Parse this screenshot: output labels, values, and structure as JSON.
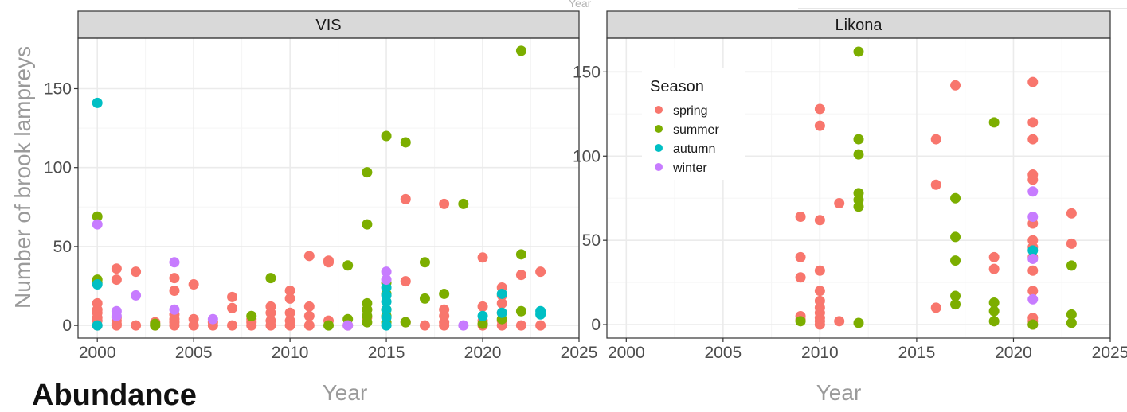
{
  "figure": {
    "ylabel": "Number of brook lampreys",
    "xlabel": "Year",
    "top_fragment": "Year",
    "heading": "Abundance"
  },
  "colors": {
    "spring": "#F8766D",
    "summer": "#7CAE00",
    "autumn": "#00BFC4",
    "winter": "#C77CFF",
    "strip": "#d9d9d9",
    "grid_major": "#ebebeb",
    "grid_minor": "#f5f5f5"
  },
  "legend": {
    "title": "Season",
    "placement": "top-left inside Likona panel",
    "items": [
      {
        "key": "spring",
        "label": "spring"
      },
      {
        "key": "summer",
        "label": "summer"
      },
      {
        "key": "autumn",
        "label": "autumn"
      },
      {
        "key": "winter",
        "label": "winter"
      }
    ]
  },
  "chart_data": [
    {
      "type": "scatter",
      "title": "VIS",
      "xlabel": "Year",
      "ylabel": "Number of brook lampreys",
      "xlim": [
        1999,
        2025
      ],
      "ylim": [
        -8,
        182
      ],
      "xticks": [
        2000,
        2005,
        2010,
        2015,
        2020,
        2025
      ],
      "yticks": [
        0,
        50,
        100,
        150
      ],
      "grid": true,
      "series": [
        {
          "name": "spring",
          "x": [
            2000,
            2000,
            2000,
            2000,
            2000,
            2000,
            2001,
            2001,
            2001,
            2001,
            2001,
            2001,
            2002,
            2002,
            2003,
            2003,
            2004,
            2004,
            2004,
            2004,
            2004,
            2004,
            2005,
            2005,
            2005,
            2006,
            2006,
            2007,
            2007,
            2007,
            2008,
            2008,
            2008,
            2009,
            2009,
            2009,
            2009,
            2010,
            2010,
            2010,
            2010,
            2010,
            2011,
            2011,
            2011,
            2011,
            2012,
            2012,
            2012,
            2013,
            2014,
            2014,
            2016,
            2016,
            2016,
            2017,
            2018,
            2018,
            2018,
            2018,
            2018,
            2020,
            2020,
            2020,
            2020,
            2021,
            2021,
            2021,
            2021,
            2021,
            2021,
            2022,
            2022,
            2023,
            2023
          ],
          "y": [
            14,
            10,
            8,
            5,
            3,
            0,
            36,
            29,
            5,
            3,
            1,
            0,
            34,
            0,
            2,
            0,
            30,
            22,
            7,
            4,
            2,
            0,
            26,
            4,
            0,
            2,
            0,
            18,
            11,
            0,
            4,
            2,
            0,
            12,
            8,
            3,
            0,
            22,
            17,
            8,
            3,
            0,
            44,
            12,
            6,
            0,
            40,
            3,
            41,
            0,
            10,
            5,
            80,
            28,
            2,
            0,
            77,
            10,
            6,
            2,
            0,
            43,
            12,
            3,
            0,
            24,
            19,
            14,
            8,
            3,
            0,
            32,
            0,
            34,
            0
          ]
        },
        {
          "name": "summer",
          "x": [
            2000,
            2000,
            2000,
            2003,
            2003,
            2008,
            2009,
            2012,
            2013,
            2013,
            2014,
            2014,
            2014,
            2014,
            2014,
            2014,
            2015,
            2015,
            2015,
            2015,
            2015,
            2015,
            2016,
            2016,
            2017,
            2017,
            2018,
            2019,
            2020,
            2021,
            2022,
            2022,
            2022
          ],
          "y": [
            69,
            29,
            27,
            1,
            0,
            6,
            30,
            0,
            38,
            4,
            97,
            64,
            14,
            10,
            6,
            2,
            120,
            27,
            20,
            10,
            6,
            2,
            116,
            2,
            40,
            17,
            20,
            77,
            1,
            4,
            174,
            45,
            9
          ]
        },
        {
          "name": "autumn",
          "x": [
            2000,
            2000,
            2000,
            2015,
            2015,
            2015,
            2015,
            2015,
            2015,
            2020,
            2021,
            2021,
            2023,
            2023
          ],
          "y": [
            141,
            26,
            0,
            24,
            19,
            15,
            10,
            5,
            0,
            6,
            20,
            8,
            9,
            7
          ]
        },
        {
          "name": "winter",
          "x": [
            2000,
            2001,
            2001,
            2002,
            2004,
            2004,
            2006,
            2013,
            2015,
            2015,
            2019
          ],
          "y": [
            64,
            9,
            6,
            19,
            40,
            10,
            4,
            0,
            34,
            29,
            0
          ]
        }
      ]
    },
    {
      "type": "scatter",
      "title": "Likona",
      "xlabel": "Year",
      "ylabel": "",
      "xlim": [
        1999,
        2025
      ],
      "ylim": [
        -8,
        170
      ],
      "xticks": [
        2000,
        2005,
        2010,
        2015,
        2020,
        2025
      ],
      "yticks": [
        0,
        50,
        100,
        150
      ],
      "grid": true,
      "series": [
        {
          "name": "spring",
          "x": [
            2009,
            2009,
            2009,
            2009,
            2009,
            2010,
            2010,
            2010,
            2010,
            2010,
            2010,
            2010,
            2010,
            2010,
            2010,
            2010,
            2011,
            2011,
            2016,
            2016,
            2016,
            2017,
            2019,
            2019,
            2021,
            2021,
            2021,
            2021,
            2021,
            2021,
            2021,
            2021,
            2021,
            2021,
            2021,
            2021,
            2021,
            2021,
            2023,
            2023
          ],
          "y": [
            64,
            40,
            28,
            5,
            3,
            128,
            118,
            62,
            32,
            20,
            14,
            10,
            7,
            4,
            2,
            0,
            72,
            2,
            110,
            83,
            10,
            142,
            40,
            33,
            144,
            120,
            110,
            89,
            86,
            60,
            50,
            46,
            40,
            32,
            20,
            4,
            2,
            0,
            66,
            48
          ]
        },
        {
          "name": "summer",
          "x": [
            2009,
            2012,
            2012,
            2012,
            2012,
            2012,
            2012,
            2012,
            2017,
            2017,
            2017,
            2017,
            2017,
            2019,
            2019,
            2019,
            2019,
            2021,
            2023,
            2023,
            2023
          ],
          "y": [
            2,
            162,
            110,
            101,
            78,
            74,
            70,
            1,
            75,
            52,
            38,
            17,
            12,
            120,
            13,
            8,
            2,
            0,
            35,
            6,
            1
          ]
        },
        {
          "name": "autumn",
          "x": [
            2021
          ],
          "y": [
            44
          ]
        },
        {
          "name": "winter",
          "x": [
            2021,
            2021,
            2021,
            2021
          ],
          "y": [
            79,
            64,
            39,
            15
          ]
        }
      ]
    }
  ]
}
